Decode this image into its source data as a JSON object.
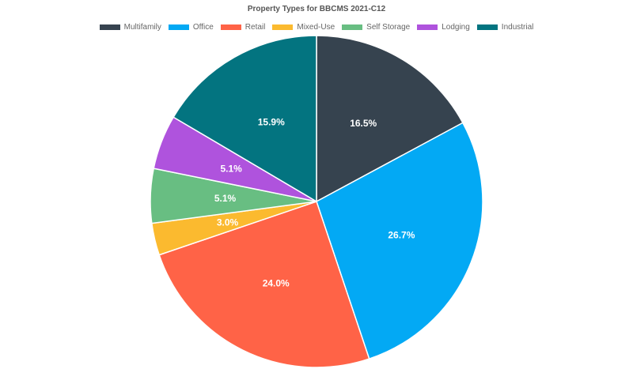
{
  "chart_data": {
    "type": "pie",
    "title": "Property Types for BBCMS 2021-C12",
    "legend_position": "top",
    "slices": [
      {
        "label": "Multifamily",
        "value": 16.5,
        "display": "16.5%",
        "color": "#36434f"
      },
      {
        "label": "Office",
        "value": 26.7,
        "display": "26.7%",
        "color": "#03a9f4"
      },
      {
        "label": "Retail",
        "value": 24.0,
        "display": "24.0%",
        "color": "#ff6347"
      },
      {
        "label": "Mixed-Use",
        "value": 3.0,
        "display": "3.0%",
        "color": "#fbba2f"
      },
      {
        "label": "Self Storage",
        "value": 5.1,
        "display": "5.1%",
        "color": "#68be82"
      },
      {
        "label": "Lodging",
        "value": 5.1,
        "display": "5.1%",
        "color": "#af53dd"
      },
      {
        "label": "Industrial",
        "value": 15.9,
        "display": "15.9%",
        "color": "#037480"
      }
    ]
  }
}
